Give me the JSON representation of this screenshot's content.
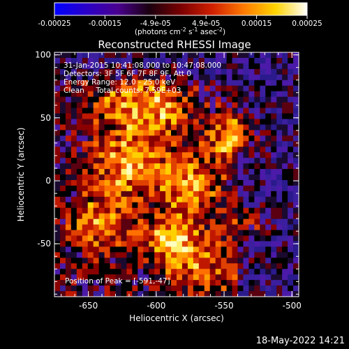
{
  "colorbar": {
    "ticks": [
      "-0.00025",
      "-0.00015",
      "-4.9e-05",
      "4.9e-05",
      "0.00015",
      "0.00025"
    ],
    "unit": "(photons cm",
    "unit_exp1": "-2",
    "unit_mid": " s",
    "unit_exp2": "-1",
    "unit_end": " asec",
    "unit_exp3": "-2",
    "unit_close": ")",
    "palette": [
      "#0000ff",
      "#2a00c8",
      "#4a0090",
      "#1a0010",
      "#7a0000",
      "#d02000",
      "#ff7a00",
      "#ffd400",
      "#ffffff"
    ]
  },
  "title": "Reconstructed RHESSI Image",
  "annotation": {
    "line1": "31-Jan-2015 10:41:08.000 to 10:47:08.000",
    "line2": "Detectors: 3F 5F 6F 7F 8F 9F, Att 0",
    "line3": "Energy Range: 12.0 - 25.0 keV",
    "line4": "Clean     Total counts: 7.59E+03",
    "peak": "Position of Peak = [-591,-47]"
  },
  "axes": {
    "xlabel": "Heliocentric X (arcsec)",
    "ylabel": "Heliocentric Y (arcsec)",
    "xticks": [
      "-650",
      "-600",
      "-550",
      "-500"
    ],
    "yticks": [
      "100",
      "50",
      "0",
      "-50"
    ],
    "xlim": [
      -675,
      -495
    ],
    "ylim": [
      -92,
      102
    ]
  },
  "timestamp": "18-May-2022 14:21"
}
